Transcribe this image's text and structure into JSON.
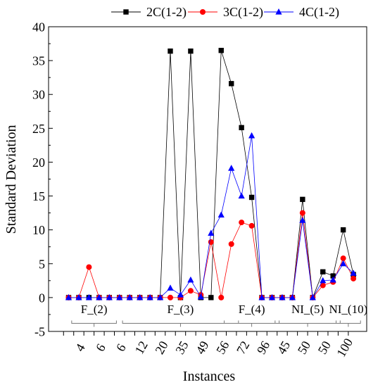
{
  "chart_data": {
    "type": "line",
    "xlabel": "Instances",
    "ylabel": "Standard Deviation",
    "ylim": [
      -5,
      40
    ],
    "yticks": [
      "-5",
      "0",
      "5",
      "10",
      "15",
      "20",
      "25",
      "30",
      "35",
      "40"
    ],
    "x_tick_labels": [
      "4",
      "6",
      "6",
      "12",
      "20",
      "35",
      "49",
      "56",
      "72",
      "96",
      "45",
      "50",
      "50",
      "100"
    ],
    "groups": [
      {
        "label": "F_(2)",
        "first": 1,
        "last": 4
      },
      {
        "label": "F_(3)",
        "first": 6,
        "last": 16
      },
      {
        "label": "F_(4)",
        "first": 16,
        "last": 20
      },
      {
        "label": "NI_(5)",
        "first": 21,
        "last": 26
      },
      {
        "label": "NI_(10)",
        "first": 27,
        "last": 28
      }
    ],
    "legend_position": "top",
    "series": [
      {
        "name": "2C(1-2)",
        "color": "#000000",
        "marker": "square",
        "values": [
          0,
          0,
          0,
          0,
          0,
          0,
          0,
          0,
          0,
          0,
          36.4,
          0,
          36.4,
          0,
          0,
          36.5,
          31.6,
          25.1,
          14.8,
          0,
          0,
          0,
          0,
          14.5,
          0,
          3.8,
          3.2,
          10.0,
          3.4
        ]
      },
      {
        "name": "3C(1-2)",
        "color": "#ff0000",
        "marker": "circle",
        "values": [
          0,
          0,
          4.5,
          0,
          0,
          0,
          0,
          0,
          0,
          0,
          0,
          0,
          1.0,
          0.4,
          8.2,
          0,
          7.9,
          11.1,
          10.6,
          0,
          0,
          0,
          0,
          12.5,
          0,
          1.8,
          2.3,
          5.8,
          2.8
        ]
      },
      {
        "name": "4C(1-2)",
        "color": "#0000ff",
        "marker": "triangle",
        "values": [
          0,
          0,
          0,
          0,
          0,
          0,
          0,
          0,
          0,
          0,
          1.4,
          0.4,
          2.6,
          0.1,
          9.5,
          12.2,
          19.1,
          15.0,
          23.9,
          0,
          0,
          0,
          0,
          11.4,
          0,
          2.5,
          2.6,
          5.0,
          3.6
        ]
      }
    ]
  }
}
